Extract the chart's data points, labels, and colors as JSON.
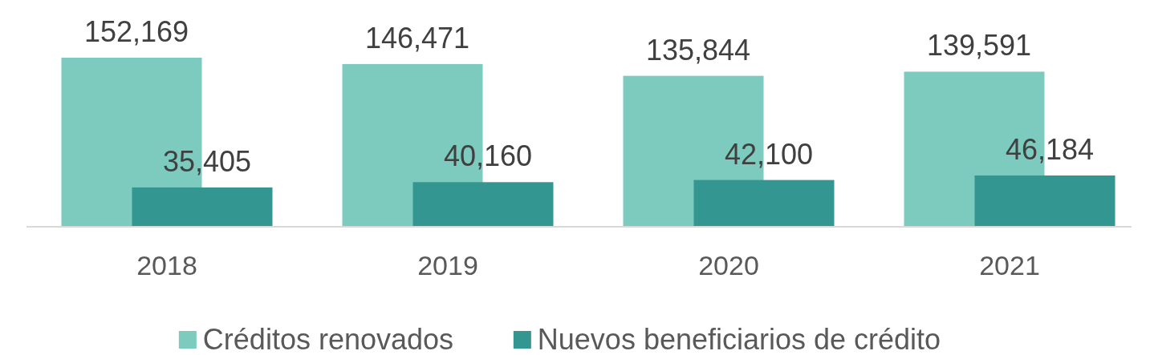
{
  "chart_data": {
    "type": "bar",
    "categories": [
      "2018",
      "2019",
      "2020",
      "2021"
    ],
    "series": [
      {
        "name": "Créditos renovados",
        "color": "#7dcbbf",
        "values": [
          152169,
          146471,
          135844,
          139591
        ],
        "value_labels": [
          "152,169",
          "146,471",
          "135,844",
          "139,591"
        ]
      },
      {
        "name": "Nuevos beneficiarios de crédito",
        "color": "#339690",
        "values": [
          35405,
          40160,
          42100,
          46184
        ],
        "value_labels": [
          "35,405",
          "40,160",
          "42,100",
          "46,184"
        ]
      }
    ],
    "legend": "bottom"
  }
}
